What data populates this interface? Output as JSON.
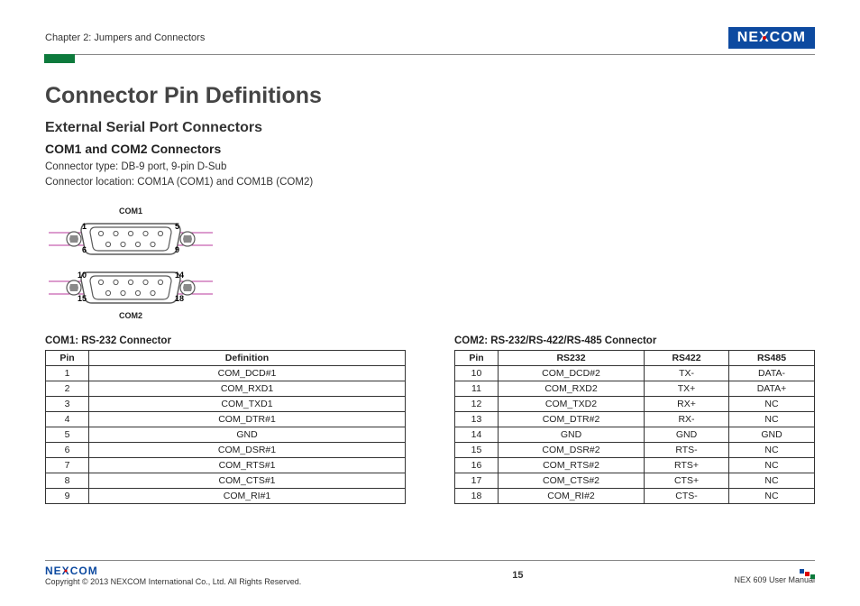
{
  "header": {
    "chapter": "Chapter 2: Jumpers and Connectors",
    "logo_text_a": "NE",
    "logo_text_x": "X",
    "logo_text_b": "COM"
  },
  "title": "Connector Pin Definitions",
  "subtitle": "External Serial Port Connectors",
  "subsubtitle": "COM1 and COM2 Connectors",
  "meta1": "Connector type: DB-9 port, 9-pin D-Sub",
  "meta2": "Connector location: COM1A (COM1) and COM1B (COM2)",
  "diagram": {
    "com1_label": "COM1",
    "com2_label": "COM2",
    "com1_top_left": "1",
    "com1_top_right": "5",
    "com1_bot_left": "6",
    "com1_bot_right": "9",
    "com2_top_left": "10",
    "com2_top_right": "14",
    "com2_bot_left": "15",
    "com2_bot_right": "18"
  },
  "table1": {
    "title": "COM1: RS-232 Connector",
    "col_pin": "Pin",
    "col_def": "Definition",
    "rows": [
      {
        "pin": "1",
        "def": "COM_DCD#1"
      },
      {
        "pin": "2",
        "def": "COM_RXD1"
      },
      {
        "pin": "3",
        "def": "COM_TXD1"
      },
      {
        "pin": "4",
        "def": "COM_DTR#1"
      },
      {
        "pin": "5",
        "def": "GND"
      },
      {
        "pin": "6",
        "def": "COM_DSR#1"
      },
      {
        "pin": "7",
        "def": "COM_RTS#1"
      },
      {
        "pin": "8",
        "def": "COM_CTS#1"
      },
      {
        "pin": "9",
        "def": "COM_RI#1"
      }
    ]
  },
  "table2": {
    "title": "COM2: RS-232/RS-422/RS-485 Connector",
    "col_pin": "Pin",
    "col_a": "RS232",
    "col_b": "RS422",
    "col_c": "RS485",
    "rows": [
      {
        "pin": "10",
        "a": "COM_DCD#2",
        "b": "TX-",
        "c": "DATA-"
      },
      {
        "pin": "11",
        "a": "COM_RXD2",
        "b": "TX+",
        "c": "DATA+"
      },
      {
        "pin": "12",
        "a": "COM_TXD2",
        "b": "RX+",
        "c": "NC"
      },
      {
        "pin": "13",
        "a": "COM_DTR#2",
        "b": "RX-",
        "c": "NC"
      },
      {
        "pin": "14",
        "a": "GND",
        "b": "GND",
        "c": "GND"
      },
      {
        "pin": "15",
        "a": "COM_DSR#2",
        "b": "RTS-",
        "c": "NC"
      },
      {
        "pin": "16",
        "a": "COM_RTS#2",
        "b": "RTS+",
        "c": "NC"
      },
      {
        "pin": "17",
        "a": "COM_CTS#2",
        "b": "CTS+",
        "c": "NC"
      },
      {
        "pin": "18",
        "a": "COM_RI#2",
        "b": "CTS-",
        "c": "NC"
      }
    ]
  },
  "footer": {
    "copyright": "Copyright © 2013 NEXCOM International Co., Ltd. All Rights Reserved.",
    "page": "15",
    "manual": "NEX 609 User Manual"
  },
  "colors": {
    "shell_stroke": "#5a5a5a",
    "pin_line": "#b93a9c",
    "screw_fill": "#8a8a8a",
    "text": "#222222"
  }
}
